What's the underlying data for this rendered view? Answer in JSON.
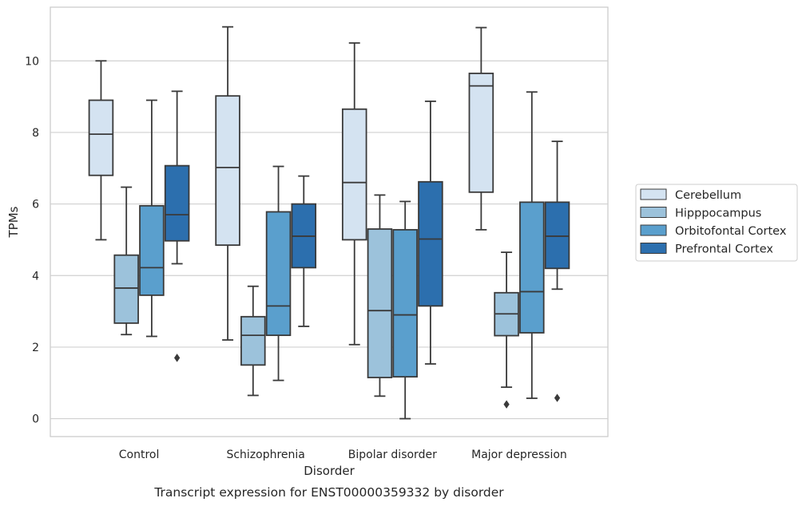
{
  "chart_data": {
    "type": "boxplot",
    "caption": "Transcript expression for ENST00000359332 by disorder",
    "xlabel": "Disorder",
    "ylabel": "TPMs",
    "ylim": [
      -0.5,
      11.5
    ],
    "yticks": [
      0,
      2,
      4,
      6,
      8,
      10
    ],
    "grid": "horizontal",
    "legend_position": "right",
    "categories": [
      "Control",
      "Schizophrenia",
      "Bipolar disorder",
      "Major depression"
    ],
    "series": [
      {
        "name": "Cerebellum",
        "color": "#d4e3f1",
        "boxes": [
          {
            "whislo": 5.0,
            "q1": 6.8,
            "med": 7.95,
            "q3": 8.9,
            "whishi": 10.0,
            "fliers": []
          },
          {
            "whislo": 2.2,
            "q1": 4.85,
            "med": 7.02,
            "q3": 9.02,
            "whishi": 10.95,
            "fliers": []
          },
          {
            "whislo": 2.07,
            "q1": 5.0,
            "med": 6.6,
            "q3": 8.65,
            "whishi": 10.5,
            "fliers": []
          },
          {
            "whislo": 5.28,
            "q1": 6.33,
            "med": 9.3,
            "q3": 9.65,
            "whishi": 10.93,
            "fliers": []
          }
        ]
      },
      {
        "name": "Hipppocampus",
        "color": "#9cc2db",
        "boxes": [
          {
            "whislo": 2.35,
            "q1": 2.67,
            "med": 3.65,
            "q3": 4.57,
            "whishi": 6.47,
            "fliers": []
          },
          {
            "whislo": 0.65,
            "q1": 1.5,
            "med": 2.33,
            "q3": 2.85,
            "whishi": 3.7,
            "fliers": []
          },
          {
            "whislo": 0.63,
            "q1": 1.15,
            "med": 3.02,
            "q3": 5.3,
            "whishi": 6.25,
            "fliers": []
          },
          {
            "whislo": 0.88,
            "q1": 2.32,
            "med": 2.93,
            "q3": 3.52,
            "whishi": 4.65,
            "fliers": [
              0.4
            ]
          }
        ]
      },
      {
        "name": "Orbitofontal Cortex",
        "color": "#5a9fcd",
        "boxes": [
          {
            "whislo": 2.3,
            "q1": 3.45,
            "med": 4.22,
            "q3": 5.95,
            "whishi": 8.9,
            "fliers": []
          },
          {
            "whislo": 1.07,
            "q1": 2.33,
            "med": 3.15,
            "q3": 5.78,
            "whishi": 7.05,
            "fliers": []
          },
          {
            "whislo": 0.0,
            "q1": 1.17,
            "med": 2.9,
            "q3": 5.28,
            "whishi": 6.07,
            "fliers": []
          },
          {
            "whislo": 0.57,
            "q1": 2.4,
            "med": 3.55,
            "q3": 6.05,
            "whishi": 9.13,
            "fliers": []
          }
        ]
      },
      {
        "name": "Prefrontal Cortex",
        "color": "#2c6fae",
        "boxes": [
          {
            "whislo": 4.33,
            "q1": 4.97,
            "med": 5.7,
            "q3": 7.07,
            "whishi": 9.15,
            "fliers": [
              1.7
            ]
          },
          {
            "whislo": 2.58,
            "q1": 4.22,
            "med": 5.1,
            "q3": 6.0,
            "whishi": 6.78,
            "fliers": []
          },
          {
            "whislo": 1.53,
            "q1": 3.15,
            "med": 5.02,
            "q3": 6.62,
            "whishi": 8.87,
            "fliers": []
          },
          {
            "whislo": 3.62,
            "q1": 4.2,
            "med": 5.1,
            "q3": 6.05,
            "whishi": 7.75,
            "fliers": [
              0.58
            ]
          }
        ]
      }
    ]
  }
}
